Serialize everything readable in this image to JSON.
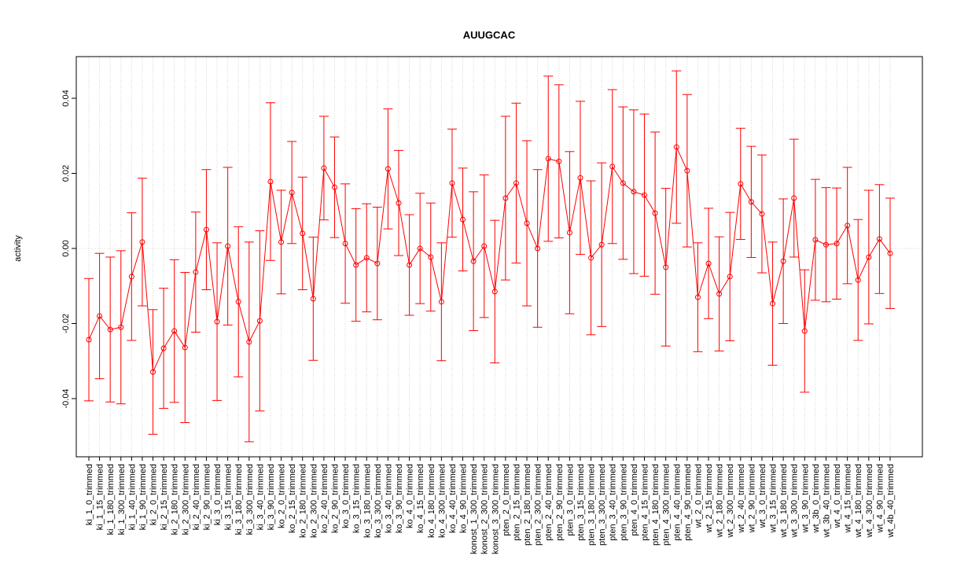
{
  "chart_data": {
    "type": "errorbar-line",
    "title": "AUUGCAC",
    "y_label": "activity",
    "categories": [
      "ki_1_0_trimmed",
      "ki_1_15_trimmed",
      "ki_1_180_trimmed",
      "ki_1_300_trimmed",
      "ki_1_40_trimmed",
      "ki_1_90_trimmed",
      "ki_2_0_trimmed",
      "ki_2_15_trimmed",
      "ki_2_180_trimmed",
      "ki_2_300_trimmed",
      "ki_2_40_trimmed",
      "ki_2_90_trimmed",
      "ki_3_0_trimmed",
      "ki_3_15_trimmed",
      "ki_3_180_trimmed",
      "ki_3_300_trimmed",
      "ki_3_40_trimmed",
      "ki_3_90_trimmed",
      "ko_2_0_trimmed",
      "ko_2_15_trimmed",
      "ko_2_180_trimmed",
      "ko_2_300_trimmed",
      "ko_2_40_trimmed",
      "ko_2_90_trimmed",
      "ko_3_0_trimmed",
      "ko_3_15_trimmed",
      "ko_3_180_trimmed",
      "ko_3_300_trimmed",
      "ko_3_40_trimmed",
      "ko_3_90_trimmed",
      "ko_4_0_trimmed",
      "ko_4_15_trimmed",
      "ko_4_180_trimmed",
      "ko_4_300_trimmed",
      "ko_4_40_trimmed",
      "ko_4_90_trimmed",
      "konost_1_300_trimmed",
      "konost_2_300_trimmed",
      "konost_3_300_trimmed",
      "pten_2_0_trimmed",
      "pten_2_15_trimmed",
      "pten_2_180_trimmed",
      "pten_2_300_trimmed",
      "pten_2_40_trimmed",
      "pten_2_90_trimmed",
      "pten_3_0_trimmed",
      "pten_3_15_trimmed",
      "pten_3_180_trimmed",
      "pten_3_300_trimmed",
      "pten_3_40_trimmed",
      "pten_3_90_trimmed",
      "pten_4_0_trimmed",
      "pten_4_15_trimmed",
      "pten_4_180_trimmed",
      "pten_4_300_trimmed",
      "pten_4_40_trimmed",
      "pten_4_90_trimmed",
      "wt_2_0_trimmed",
      "wt_2_15_trimmed",
      "wt_2_180_trimmed",
      "wt_2_300_trimmed",
      "wt_2_40_trimmed",
      "wt_2_90_trimmed",
      "wt_3_0_trimmed",
      "wt_3_15_trimmed",
      "wt_3_180_trimmed",
      "wt_3_300_trimmed",
      "wt_3_90_trimmed",
      "wt_3b_0_trimmed",
      "wt_3b_40_trimmed",
      "wt_4_0_trimmed",
      "wt_4_15_trimmed",
      "wt_4_180_trimmed",
      "wt_4_300_trimmed",
      "wt_4_90_trimmed",
      "wt_4b_40_trimmed"
    ],
    "values": [
      -0.0243,
      -0.018,
      -0.0216,
      -0.021,
      -0.0075,
      0.0017,
      -0.0329,
      -0.0266,
      -0.022,
      -0.0264,
      -0.0063,
      0.005,
      -0.0195,
      0.0006,
      -0.0142,
      -0.0249,
      -0.0193,
      0.0178,
      0.0017,
      0.0149,
      0.004,
      -0.0134,
      0.0214,
      0.0163,
      0.0013,
      -0.0044,
      -0.0025,
      -0.004,
      0.0212,
      0.0121,
      -0.0044,
      0,
      -0.0023,
      -0.0142,
      0.0174,
      0.0077,
      -0.0034,
      0.0006,
      -0.0115,
      0.0134,
      0.0174,
      0.0067,
      0,
      0.0239,
      0.0232,
      0.0042,
      0.0188,
      -0.0025,
      0.001,
      0.0218,
      0.0174,
      0.0151,
      0.0142,
      0.0094,
      -0.005,
      0.027,
      0.0207,
      -0.013,
      -0.004,
      -0.0121,
      -0.0075,
      0.0172,
      0.0124,
      0.0092,
      -0.0147,
      -0.0034,
      0.0134,
      -0.022,
      0.0023,
      0.001,
      0.0013,
      0.0061,
      -0.0084,
      -0.0023,
      0.0025,
      -0.0013
    ],
    "errors": [
      0.0163,
      0.0167,
      0.0193,
      0.0204,
      0.017,
      0.017,
      0.0166,
      0.016,
      0.019,
      0.02,
      0.016,
      0.016,
      0.021,
      0.021,
      0.02,
      0.0266,
      0.024,
      0.021,
      0.0138,
      0.0136,
      0.015,
      0.0164,
      0.0138,
      0.0134,
      0.0159,
      0.015,
      0.0144,
      0.015,
      0.016,
      0.014,
      0.0134,
      0.0147,
      0.0144,
      0.0157,
      0.0144,
      0.0137,
      0.0185,
      0.019,
      0.019,
      0.0218,
      0.0213,
      0.022,
      0.021,
      0.022,
      0.0204,
      0.0216,
      0.0204,
      0.0205,
      0.0218,
      0.0205,
      0.0203,
      0.0218,
      0.0216,
      0.0216,
      0.021,
      0.0203,
      0.0203,
      0.0145,
      0.0147,
      0.0152,
      0.0171,
      0.0148,
      0.0148,
      0.0157,
      0.0164,
      0.0166,
      0.0157,
      0.0163,
      0.0161,
      0.0152,
      0.0148,
      0.0155,
      0.0161,
      0.0178,
      0.0145,
      0.0147
    ],
    "color": "#ff0000",
    "ylim": [
      -0.0555,
      0.0511
    ],
    "yticks": [
      -0.04,
      -0.02,
      {
        "value": 0,
        "label": "0.00"
      },
      0.02,
      0.04
    ],
    "grid": true,
    "zero_line": true
  }
}
